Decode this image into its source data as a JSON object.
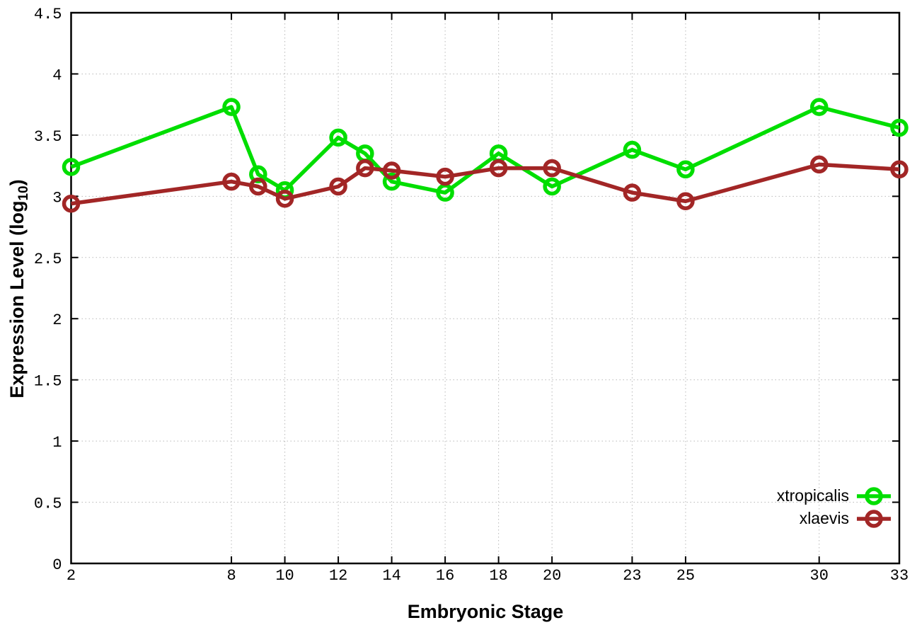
{
  "chart_data": {
    "type": "line",
    "style": "linespoints-open-circle",
    "xlabel": "Embryonic Stage",
    "ylabel": "Expression Level (log10)",
    "ylabel_parts": {
      "pre": "Expression Level (log",
      "sub": "10",
      "post": ")"
    },
    "x": [
      2,
      8,
      9,
      10,
      12,
      13,
      14,
      16,
      18,
      20,
      23,
      25,
      30,
      33
    ],
    "xticks": [
      2,
      8,
      10,
      12,
      14,
      16,
      18,
      20,
      23,
      25,
      30,
      33
    ],
    "yticks": [
      0,
      0.5,
      1,
      1.5,
      2,
      2.5,
      3,
      3.5,
      4,
      4.5
    ],
    "xlim": [
      2,
      33
    ],
    "ylim": [
      0,
      4.5
    ],
    "grid": true,
    "legend_position": "bottom-right",
    "series": [
      {
        "name": "xtropicalis",
        "color": "#00DE00",
        "values": [
          3.24,
          3.73,
          3.18,
          3.05,
          3.48,
          3.35,
          3.12,
          3.03,
          3.35,
          3.08,
          3.38,
          3.22,
          3.73,
          3.56
        ]
      },
      {
        "name": "xlaevis",
        "color": "#A22626",
        "values": [
          2.94,
          3.12,
          3.08,
          2.98,
          3.08,
          3.23,
          3.21,
          3.16,
          3.23,
          3.23,
          3.03,
          2.96,
          3.26,
          3.22
        ]
      }
    ]
  },
  "styles": {
    "background": "#ffffff",
    "grid_color": "#b9b9b9",
    "axis_color": "#000000",
    "text_color": "#000000"
  }
}
